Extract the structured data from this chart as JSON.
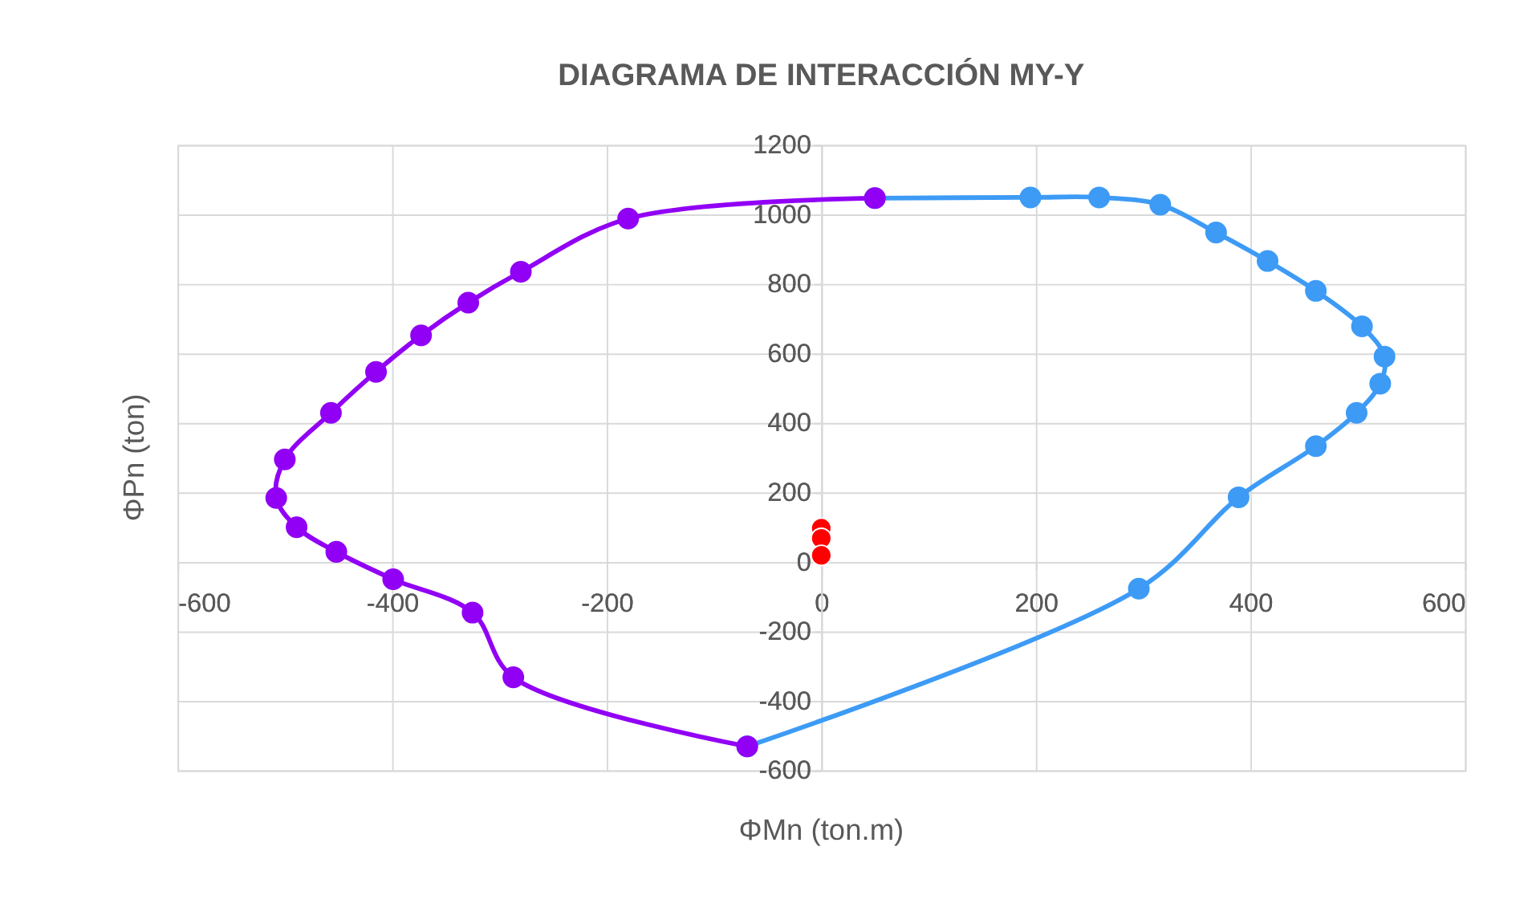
{
  "chart_data": {
    "type": "line",
    "title": "DIAGRAMA DE INTERACCIÓN MY-Y",
    "xlabel": "ΦMn (ton.m)",
    "ylabel": "ΦPn (ton)",
    "xlim": [
      -600,
      600
    ],
    "xticks": [
      -600,
      -400,
      -200,
      0,
      200,
      400,
      600
    ],
    "ylim": [
      -600,
      1200
    ],
    "yticks": [
      -600,
      -400,
      -200,
      0,
      200,
      400,
      600,
      800,
      1000,
      1200
    ],
    "grid": true,
    "marker": "circle",
    "line_style": "solid",
    "series": [
      {
        "color": "#3d9bf6",
        "x": [
          -69,
          296,
          389,
          461,
          499,
          521,
          525,
          504,
          461,
          416,
          368,
          316,
          259,
          195,
          50
        ],
        "values": [
          -531,
          -77,
          186,
          333,
          429,
          513,
          591,
          678,
          780,
          866,
          948,
          1028,
          1049,
          1049,
          1047
        ]
      },
      {
        "color": "#9100f5",
        "x": [
          50,
          -180,
          -280,
          -329,
          -373,
          -415,
          -457,
          -500,
          -508,
          -489,
          -452,
          -399,
          -325,
          -287,
          -69
        ],
        "values": [
          1047,
          988,
          835,
          746,
          652,
          547,
          429,
          295,
          184,
          100,
          29,
          -50,
          -146,
          -332,
          -531
        ]
      },
      {
        "type": "scatter",
        "color": "#ff0000",
        "x": [
          0,
          0,
          0
        ],
        "values": [
          97,
          68,
          19
        ]
      }
    ]
  }
}
